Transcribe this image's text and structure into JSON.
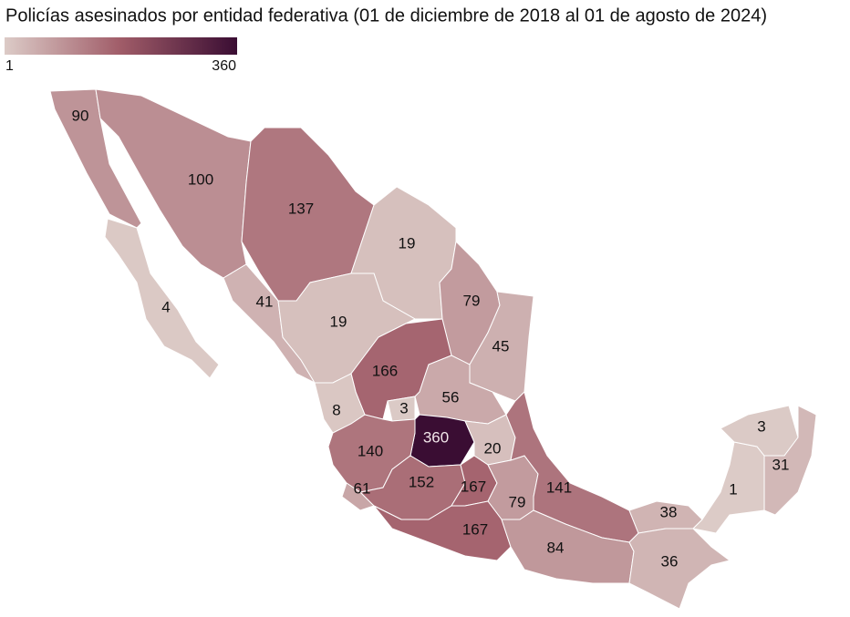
{
  "chart_data": {
    "type": "choropleth",
    "title": "Policías asesinados por entidad federativa (01 de diciembre de 2018 al 01 de agosto de 2024)",
    "scale": {
      "min": 1,
      "max": 360,
      "colors": [
        "#dccbc7",
        "#a05c68",
        "#3a0d33"
      ]
    },
    "values": [
      90,
      4,
      100,
      137,
      19,
      41,
      19,
      79,
      45,
      166,
      8,
      3,
      56,
      360,
      20,
      140,
      61,
      152,
      167,
      79,
      141,
      167,
      84,
      38,
      36,
      1,
      3,
      31
    ]
  }
}
